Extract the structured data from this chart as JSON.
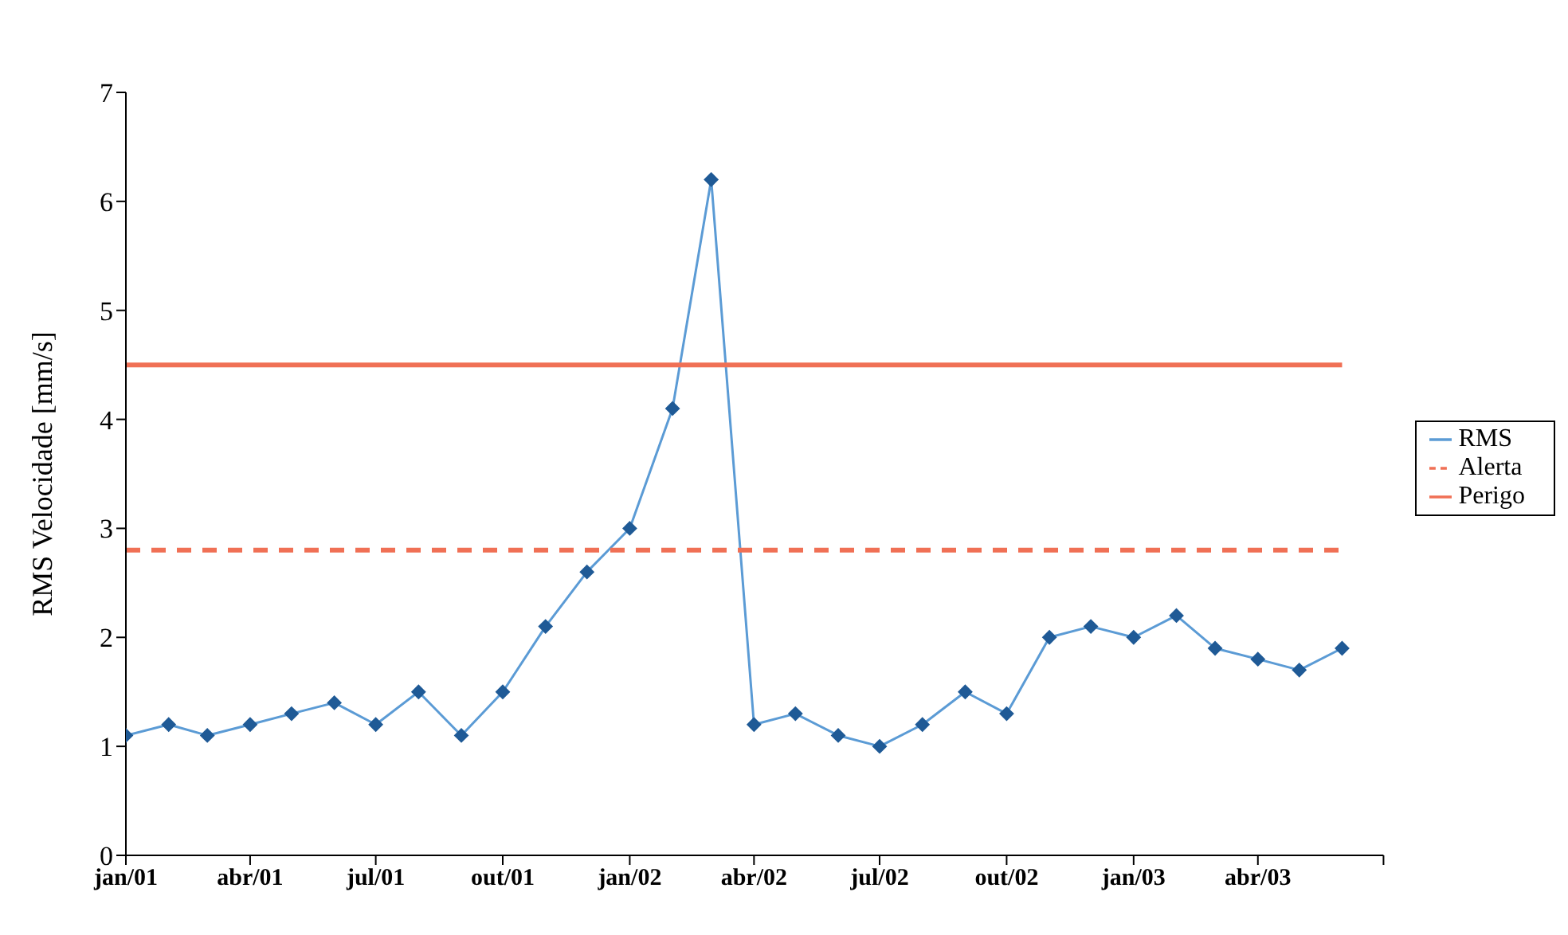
{
  "chart_data": {
    "type": "line",
    "ylabel": "RMS Velocidade [mm/s]",
    "x": [
      "2001-01",
      "2001-02",
      "2001-03",
      "2001-04",
      "2001-05",
      "2001-06",
      "2001-07",
      "2001-08",
      "2001-09",
      "2001-10",
      "2001-11",
      "2001-12",
      "2002-01",
      "2002-02",
      "2002-03",
      "2002-04",
      "2002-05",
      "2002-06",
      "2002-07",
      "2002-08",
      "2002-09",
      "2002-10",
      "2002-11",
      "2002-12",
      "2003-01",
      "2003-02",
      "2003-03",
      "2003-04",
      "2003-05",
      "2003-06"
    ],
    "series": [
      {
        "name": "RMS",
        "color": "#5b9bd5",
        "marker": "diamond",
        "line_style": "solid",
        "values": [
          1.1,
          1.2,
          1.1,
          1.2,
          1.3,
          1.4,
          1.2,
          1.5,
          1.1,
          1.5,
          2.1,
          2.6,
          3.0,
          4.1,
          6.2,
          1.2,
          1.3,
          1.1,
          1.0,
          1.2,
          1.5,
          1.3,
          2.0,
          2.1,
          2.0,
          2.2,
          1.9,
          1.8,
          1.7,
          1.9
        ]
      },
      {
        "name": "Alerta",
        "color": "#f07055",
        "marker": "none",
        "line_style": "dashed",
        "values": [
          2.8,
          2.8,
          2.8,
          2.8,
          2.8,
          2.8,
          2.8,
          2.8,
          2.8,
          2.8,
          2.8,
          2.8,
          2.8,
          2.8,
          2.8,
          2.8,
          2.8,
          2.8,
          2.8,
          2.8,
          2.8,
          2.8,
          2.8,
          2.8,
          2.8,
          2.8,
          2.8,
          2.8,
          2.8,
          2.8
        ]
      },
      {
        "name": "Perigo",
        "color": "#f07055",
        "marker": "none",
        "line_style": "solid",
        "values": [
          4.5,
          4.5,
          4.5,
          4.5,
          4.5,
          4.5,
          4.5,
          4.5,
          4.5,
          4.5,
          4.5,
          4.5,
          4.5,
          4.5,
          4.5,
          4.5,
          4.5,
          4.5,
          4.5,
          4.5,
          4.5,
          4.5,
          4.5,
          4.5,
          4.5,
          4.5,
          4.5,
          4.5,
          4.5,
          4.5
        ]
      }
    ],
    "xlim": [
      "2001-01",
      "2003-07"
    ],
    "xticks": [
      {
        "value": "2001-01",
        "label": "jan/01"
      },
      {
        "value": "2001-04",
        "label": "abr/01"
      },
      {
        "value": "2001-07",
        "label": "jul/01"
      },
      {
        "value": "2001-10",
        "label": "out/01"
      },
      {
        "value": "2002-01",
        "label": "jan/02"
      },
      {
        "value": "2002-04",
        "label": "abr/02"
      },
      {
        "value": "2002-07",
        "label": "jul/02"
      },
      {
        "value": "2002-10",
        "label": "out/02"
      },
      {
        "value": "2003-01",
        "label": "jan/03"
      },
      {
        "value": "2003-04",
        "label": "abr/03"
      },
      {
        "value": "2003-07",
        "label": null
      }
    ],
    "ylim": [
      0,
      7
    ],
    "yticks": [
      0,
      1,
      2,
      3,
      4,
      5,
      6,
      7
    ],
    "grid": false,
    "legend": "right"
  }
}
